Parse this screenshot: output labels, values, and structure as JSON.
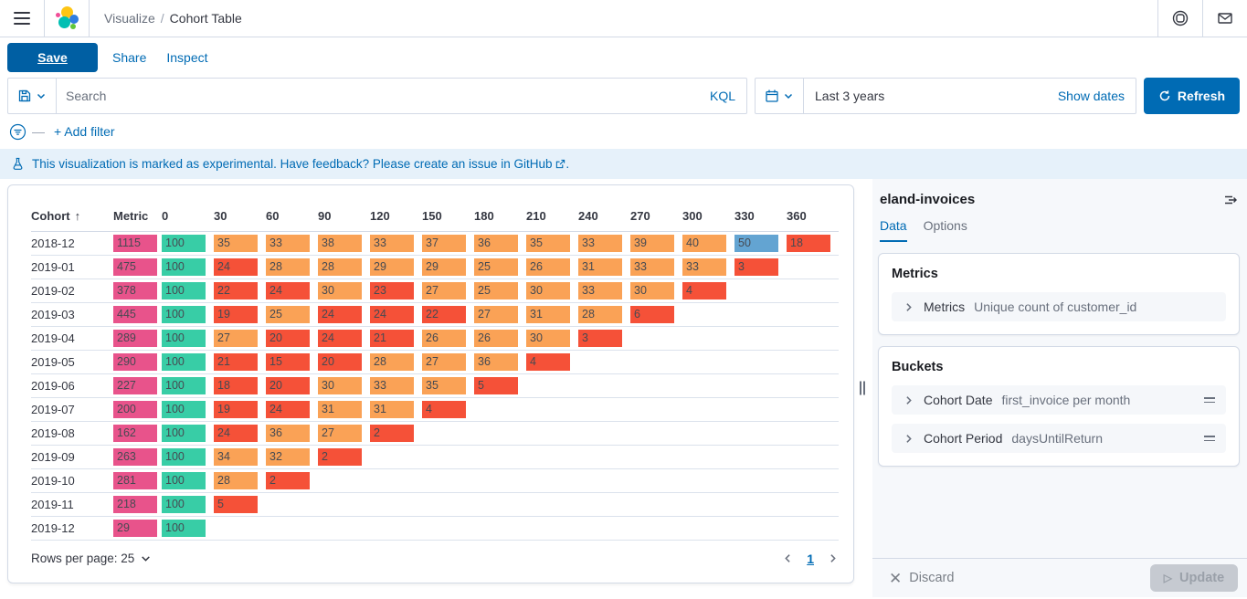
{
  "topnav": {
    "breadcrumb": {
      "section": "Visualize",
      "separator": "/",
      "page": "Cohort Table"
    }
  },
  "toolbar": {
    "save_label": "Save",
    "share_label": "Share",
    "inspect_label": "Inspect"
  },
  "querybar": {
    "search_placeholder": "Search",
    "kql_label": "KQL",
    "time_range": "Last 3 years",
    "show_dates_label": "Show dates",
    "refresh_label": "Refresh"
  },
  "filterbar": {
    "add_filter_label": "+ Add filter"
  },
  "banner": {
    "text_before": "This visualization is marked as experimental. Have feedback? Please create an issue in ",
    "link_label": "GitHub",
    "text_after": "."
  },
  "cohort_table": {
    "sort_arrow": "↑",
    "headers": [
      "Cohort",
      "Metric",
      "0",
      "30",
      "60",
      "90",
      "120",
      "150",
      "180",
      "210",
      "240",
      "270",
      "300",
      "330",
      "360"
    ],
    "rows": [
      {
        "cohort": "2018-12",
        "metric": "1115",
        "cells": [
          [
            "100",
            "teal"
          ],
          [
            "35",
            "orange"
          ],
          [
            "33",
            "orange"
          ],
          [
            "38",
            "orange"
          ],
          [
            "33",
            "orange"
          ],
          [
            "37",
            "orange"
          ],
          [
            "36",
            "orange"
          ],
          [
            "35",
            "orange"
          ],
          [
            "33",
            "orange"
          ],
          [
            "39",
            "orange"
          ],
          [
            "40",
            "orange"
          ],
          [
            "50",
            "blue"
          ],
          [
            "18",
            "red"
          ]
        ]
      },
      {
        "cohort": "2019-01",
        "metric": "475",
        "cells": [
          [
            "100",
            "teal"
          ],
          [
            "24",
            "red"
          ],
          [
            "28",
            "orange"
          ],
          [
            "28",
            "orange"
          ],
          [
            "29",
            "orange"
          ],
          [
            "29",
            "orange"
          ],
          [
            "25",
            "orange"
          ],
          [
            "26",
            "orange"
          ],
          [
            "31",
            "orange"
          ],
          [
            "33",
            "orange"
          ],
          [
            "33",
            "orange"
          ],
          [
            "3",
            "red"
          ]
        ]
      },
      {
        "cohort": "2019-02",
        "metric": "378",
        "cells": [
          [
            "100",
            "teal"
          ],
          [
            "22",
            "red"
          ],
          [
            "24",
            "red"
          ],
          [
            "30",
            "orange"
          ],
          [
            "23",
            "red"
          ],
          [
            "27",
            "orange"
          ],
          [
            "25",
            "orange"
          ],
          [
            "30",
            "orange"
          ],
          [
            "33",
            "orange"
          ],
          [
            "30",
            "orange"
          ],
          [
            "4",
            "red"
          ]
        ]
      },
      {
        "cohort": "2019-03",
        "metric": "445",
        "cells": [
          [
            "100",
            "teal"
          ],
          [
            "19",
            "red"
          ],
          [
            "25",
            "orange"
          ],
          [
            "24",
            "red"
          ],
          [
            "24",
            "red"
          ],
          [
            "22",
            "red"
          ],
          [
            "27",
            "orange"
          ],
          [
            "31",
            "orange"
          ],
          [
            "28",
            "orange"
          ],
          [
            "6",
            "red"
          ]
        ]
      },
      {
        "cohort": "2019-04",
        "metric": "289",
        "cells": [
          [
            "100",
            "teal"
          ],
          [
            "27",
            "orange"
          ],
          [
            "20",
            "red"
          ],
          [
            "24",
            "red"
          ],
          [
            "21",
            "red"
          ],
          [
            "26",
            "orange"
          ],
          [
            "26",
            "orange"
          ],
          [
            "30",
            "orange"
          ],
          [
            "3",
            "red"
          ]
        ]
      },
      {
        "cohort": "2019-05",
        "metric": "290",
        "cells": [
          [
            "100",
            "teal"
          ],
          [
            "21",
            "red"
          ],
          [
            "15",
            "red"
          ],
          [
            "20",
            "red"
          ],
          [
            "28",
            "orange"
          ],
          [
            "27",
            "orange"
          ],
          [
            "36",
            "orange"
          ],
          [
            "4",
            "red"
          ]
        ]
      },
      {
        "cohort": "2019-06",
        "metric": "227",
        "cells": [
          [
            "100",
            "teal"
          ],
          [
            "18",
            "red"
          ],
          [
            "20",
            "red"
          ],
          [
            "30",
            "orange"
          ],
          [
            "33",
            "orange"
          ],
          [
            "35",
            "orange"
          ],
          [
            "5",
            "red"
          ]
        ]
      },
      {
        "cohort": "2019-07",
        "metric": "200",
        "cells": [
          [
            "100",
            "teal"
          ],
          [
            "19",
            "red"
          ],
          [
            "24",
            "red"
          ],
          [
            "31",
            "orange"
          ],
          [
            "31",
            "orange"
          ],
          [
            "4",
            "red"
          ]
        ]
      },
      {
        "cohort": "2019-08",
        "metric": "162",
        "cells": [
          [
            "100",
            "teal"
          ],
          [
            "24",
            "red"
          ],
          [
            "36",
            "orange"
          ],
          [
            "27",
            "orange"
          ],
          [
            "2",
            "red"
          ]
        ]
      },
      {
        "cohort": "2019-09",
        "metric": "263",
        "cells": [
          [
            "100",
            "teal"
          ],
          [
            "34",
            "orange"
          ],
          [
            "32",
            "orange"
          ],
          [
            "2",
            "red"
          ]
        ]
      },
      {
        "cohort": "2019-10",
        "metric": "281",
        "cells": [
          [
            "100",
            "teal"
          ],
          [
            "28",
            "orange"
          ],
          [
            "2",
            "red"
          ]
        ]
      },
      {
        "cohort": "2019-11",
        "metric": "218",
        "cells": [
          [
            "100",
            "teal"
          ],
          [
            "5",
            "red"
          ]
        ]
      },
      {
        "cohort": "2019-12",
        "metric": "29",
        "cells": [
          [
            "100",
            "teal"
          ]
        ]
      }
    ],
    "footer": {
      "rows_per_page_label": "Rows per page: 25",
      "page": "1"
    }
  },
  "sidebar": {
    "title": "eland-invoices",
    "tabs": {
      "data": "Data",
      "options": "Options"
    },
    "metrics": {
      "heading": "Metrics",
      "row": {
        "label": "Metrics",
        "value": "Unique count of customer_id"
      }
    },
    "buckets": {
      "heading": "Buckets",
      "row1": {
        "label": "Cohort Date",
        "value": "first_invoice per month"
      },
      "row2": {
        "label": "Cohort Period",
        "value": "daysUntilReturn"
      }
    },
    "footer": {
      "discard_label": "Discard",
      "update_label": "Update"
    }
  },
  "colors": {
    "metric": "#e8538b",
    "teal": "#38cda6",
    "orange": "#faa256",
    "red": "#f55138",
    "blue": "#63a4d2",
    "primary": "#006bb4"
  }
}
